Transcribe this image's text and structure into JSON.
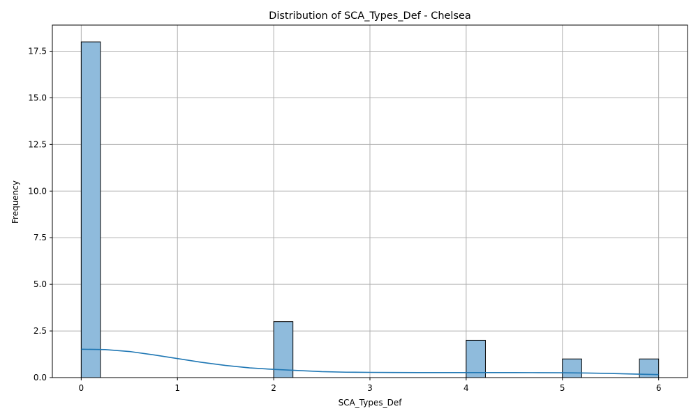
{
  "chart_data": {
    "type": "histogram",
    "title": "Distribution of SCA_Types_Def - Chelsea",
    "xlabel": "SCA_Types_Def",
    "ylabel": "Frequency",
    "xlim": [
      -0.3,
      6.3
    ],
    "ylim": [
      0,
      18.9
    ],
    "xticks": [
      "0",
      "1",
      "2",
      "3",
      "4",
      "5",
      "6"
    ],
    "yticks": [
      "0.0",
      "2.5",
      "5.0",
      "7.5",
      "10.0",
      "12.5",
      "15.0",
      "17.5"
    ],
    "grid": true,
    "bin_width": 0.2,
    "bins": [
      {
        "start": 0.0,
        "end": 0.2,
        "count": 18
      },
      {
        "start": 2.0,
        "end": 2.2,
        "count": 3
      },
      {
        "start": 4.0,
        "end": 4.2,
        "count": 2
      },
      {
        "start": 5.0,
        "end": 5.2,
        "count": 1
      },
      {
        "start": 5.8,
        "end": 6.0,
        "count": 1
      }
    ],
    "kde": {
      "x": [
        0,
        0.25,
        0.5,
        0.75,
        1.0,
        1.25,
        1.5,
        1.75,
        2.0,
        2.25,
        2.5,
        2.75,
        3.0,
        3.25,
        3.5,
        3.75,
        4.0,
        4.25,
        4.5,
        4.75,
        5.0,
        5.25,
        5.5,
        5.75,
        6.0
      ],
      "y": [
        1.52,
        1.5,
        1.4,
        1.22,
        1.02,
        0.82,
        0.65,
        0.52,
        0.44,
        0.38,
        0.32,
        0.29,
        0.28,
        0.275,
        0.27,
        0.27,
        0.27,
        0.27,
        0.27,
        0.265,
        0.26,
        0.245,
        0.22,
        0.19,
        0.16
      ]
    },
    "colors": {
      "bar_fill": "#8fbbdc",
      "bar_edge": "#000000",
      "kde_line": "#1f77b4",
      "grid": "#b0b0b0"
    }
  }
}
